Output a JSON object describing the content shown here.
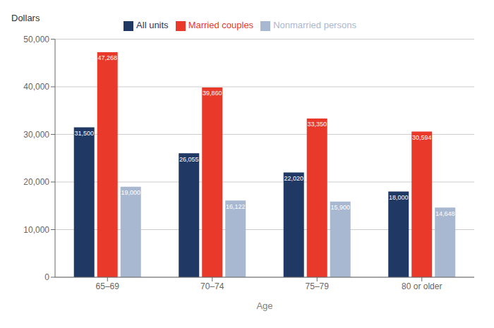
{
  "chart_data": {
    "type": "bar",
    "categories": [
      "65–69",
      "70–74",
      "75–79",
      "80 or older"
    ],
    "series": [
      {
        "name": "All units",
        "color": "#1f3864",
        "values": [
          31500,
          26055,
          22020,
          18000
        ],
        "value_labels": [
          "31,500",
          "26,055",
          "22,020",
          "18,000"
        ]
      },
      {
        "name": "Married couples",
        "color": "#e8392a",
        "values": [
          47268,
          39860,
          33350,
          30594
        ],
        "value_labels": [
          "47,268",
          "39,860",
          "33,350",
          "30,594"
        ]
      },
      {
        "name": "Nonmarried persons",
        "color": "#a8b8d0",
        "values": [
          19000,
          16122,
          15900,
          14648
        ],
        "value_labels": [
          "19,000",
          "16,122",
          "15,900",
          "14,648"
        ]
      }
    ],
    "xlabel": "Age",
    "ylabel": "Dollars",
    "ylim": [
      0,
      50000
    ],
    "yticks": [
      0,
      {
        "value": 10000,
        "label": "10,000"
      },
      {
        "value": 20000,
        "label": "20,000"
      },
      {
        "value": 30000,
        "label": "30,000"
      },
      {
        "value": 40000,
        "label": "40,000"
      },
      {
        "value": 50000,
        "label": "50,000"
      }
    ],
    "grid": true,
    "legend": "top",
    "data_labels": true
  }
}
